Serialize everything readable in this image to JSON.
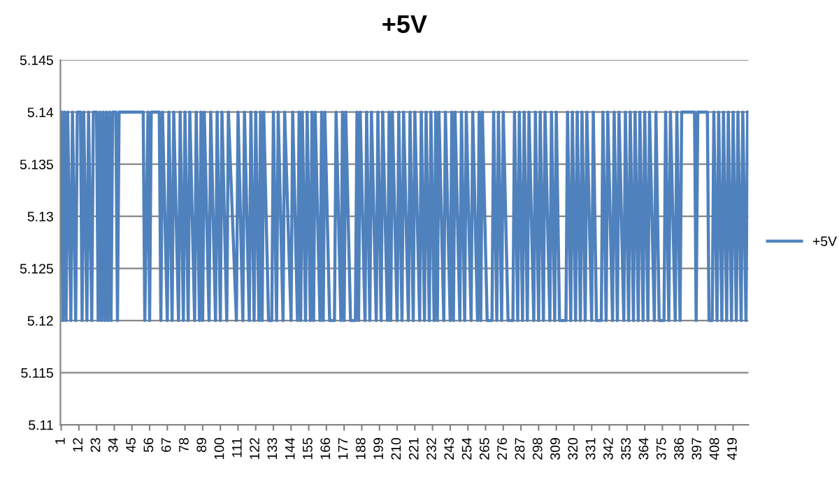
{
  "chart_data": {
    "type": "line",
    "title": "+5V",
    "legend": "right",
    "grid": "y",
    "marker": "none",
    "line_style": "solid",
    "ylim": [
      5.11,
      5.145
    ],
    "yticks": [
      5.11,
      5.115,
      5.12,
      5.125,
      5.13,
      5.135,
      5.14,
      5.145
    ],
    "xlim": [
      0.5,
      428.5
    ],
    "xticks": [
      1,
      12,
      23,
      34,
      45,
      56,
      67,
      78,
      89,
      100,
      111,
      122,
      133,
      144,
      155,
      166,
      177,
      188,
      199,
      210,
      221,
      232,
      243,
      254,
      265,
      276,
      287,
      298,
      309,
      320,
      331,
      342,
      353,
      364,
      375,
      386,
      397,
      408,
      419
    ],
    "series": [
      {
        "name": "+5V",
        "color": "#4f81bd",
        "x": [
          1,
          2,
          3,
          4,
          5,
          7,
          8,
          10,
          11,
          13,
          14,
          15,
          17,
          18,
          20,
          21,
          23,
          24,
          25,
          26,
          27,
          28,
          29,
          30,
          31,
          32,
          33,
          35,
          36,
          37,
          52,
          53,
          55,
          56,
          57,
          62,
          63,
          64,
          67,
          68,
          70,
          71,
          74,
          75,
          77,
          78,
          80,
          81,
          84,
          85,
          87,
          88,
          89,
          90,
          93,
          94,
          97,
          98,
          100,
          101,
          104,
          105,
          110,
          111,
          114,
          115,
          118,
          119,
          121,
          122,
          124,
          125,
          126,
          127,
          130,
          132,
          133,
          135,
          136,
          139,
          140,
          144,
          145,
          148,
          149,
          150,
          151,
          153,
          154,
          156,
          157,
          158,
          159,
          162,
          163,
          164,
          165,
          168,
          171,
          172,
          175,
          176,
          177,
          178,
          181,
          184,
          185,
          186,
          187,
          190,
          191,
          193,
          194,
          197,
          198,
          200,
          201,
          204,
          205,
          206,
          207,
          210,
          211,
          213,
          214,
          217,
          218,
          220,
          221,
          224,
          225,
          227,
          228,
          230,
          231,
          233,
          234,
          235,
          236,
          239,
          240,
          243,
          244,
          245,
          246,
          249,
          250,
          252,
          253,
          256,
          257,
          260,
          261,
          262,
          263,
          266,
          269,
          270,
          272,
          273,
          275,
          276,
          279,
          282,
          283,
          285,
          286,
          288,
          289,
          291,
          292,
          295,
          296,
          298,
          299,
          301,
          302,
          305,
          306,
          308,
          309,
          311,
          315,
          316,
          318,
          319,
          321,
          322,
          324,
          325,
          327,
          328,
          331,
          332,
          334,
          337,
          338,
          340,
          341,
          344,
          345,
          347,
          348,
          351,
          352,
          354,
          355,
          357,
          358,
          360,
          361,
          363,
          364,
          366,
          367,
          370,
          371,
          373,
          376,
          377,
          379,
          380,
          383,
          384,
          386,
          387,
          395,
          396,
          397,
          403,
          404,
          406,
          407,
          409,
          410,
          412,
          413,
          415,
          416,
          418,
          419,
          421,
          422,
          424,
          425,
          427,
          428
        ],
        "values": [
          5.14,
          5.12,
          5.14,
          5.12,
          5.14,
          5.12,
          5.14,
          5.12,
          5.14,
          5.14,
          5.12,
          5.14,
          5.12,
          5.14,
          5.12,
          5.14,
          5.14,
          5.12,
          5.14,
          5.12,
          5.14,
          5.12,
          5.14,
          5.12,
          5.14,
          5.12,
          5.14,
          5.14,
          5.12,
          5.14,
          5.14,
          5.12,
          5.14,
          5.12,
          5.14,
          5.14,
          5.12,
          5.14,
          5.12,
          5.14,
          5.12,
          5.14,
          5.12,
          5.14,
          5.12,
          5.14,
          5.12,
          5.14,
          5.12,
          5.14,
          5.12,
          5.14,
          5.12,
          5.14,
          5.12,
          5.14,
          5.12,
          5.14,
          5.12,
          5.14,
          5.12,
          5.14,
          5.12,
          5.14,
          5.12,
          5.14,
          5.12,
          5.14,
          5.12,
          5.14,
          5.12,
          5.14,
          5.12,
          5.14,
          5.12,
          5.12,
          5.14,
          5.12,
          5.14,
          5.12,
          5.14,
          5.12,
          5.14,
          5.12,
          5.14,
          5.12,
          5.14,
          5.12,
          5.14,
          5.12,
          5.14,
          5.12,
          5.14,
          5.12,
          5.14,
          5.12,
          5.14,
          5.12,
          5.12,
          5.14,
          5.12,
          5.14,
          5.12,
          5.14,
          5.12,
          5.12,
          5.14,
          5.12,
          5.14,
          5.12,
          5.14,
          5.12,
          5.14,
          5.12,
          5.14,
          5.12,
          5.14,
          5.12,
          5.14,
          5.12,
          5.14,
          5.12,
          5.14,
          5.12,
          5.14,
          5.12,
          5.14,
          5.12,
          5.14,
          5.12,
          5.14,
          5.12,
          5.14,
          5.12,
          5.14,
          5.12,
          5.14,
          5.12,
          5.14,
          5.12,
          5.14,
          5.12,
          5.14,
          5.12,
          5.14,
          5.12,
          5.14,
          5.12,
          5.14,
          5.12,
          5.14,
          5.12,
          5.14,
          5.12,
          5.14,
          5.12,
          5.12,
          5.14,
          5.12,
          5.14,
          5.12,
          5.14,
          5.12,
          5.12,
          5.14,
          5.12,
          5.14,
          5.12,
          5.14,
          5.12,
          5.14,
          5.12,
          5.14,
          5.12,
          5.14,
          5.12,
          5.14,
          5.12,
          5.14,
          5.12,
          5.14,
          5.12,
          5.12,
          5.14,
          5.12,
          5.14,
          5.12,
          5.14,
          5.12,
          5.14,
          5.12,
          5.14,
          5.12,
          5.14,
          5.12,
          5.12,
          5.14,
          5.12,
          5.14,
          5.12,
          5.14,
          5.12,
          5.14,
          5.12,
          5.14,
          5.12,
          5.14,
          5.12,
          5.14,
          5.12,
          5.14,
          5.12,
          5.14,
          5.12,
          5.14,
          5.12,
          5.14,
          5.12,
          5.12,
          5.14,
          5.12,
          5.14,
          5.12,
          5.14,
          5.12,
          5.14,
          5.14,
          5.12,
          5.14,
          5.14,
          5.12,
          5.12,
          5.14,
          5.12,
          5.14,
          5.12,
          5.14,
          5.12,
          5.14,
          5.12,
          5.14,
          5.12,
          5.14,
          5.12,
          5.14,
          5.12,
          5.14
        ]
      }
    ]
  }
}
